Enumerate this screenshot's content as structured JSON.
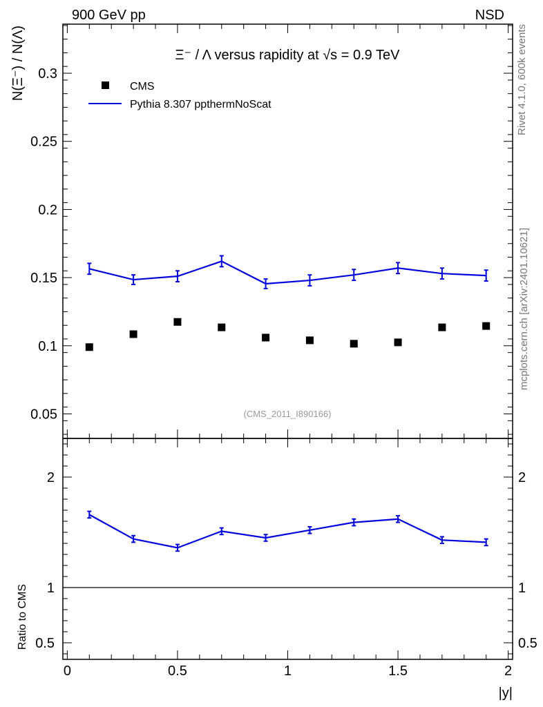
{
  "header": {
    "left_label": "900 GeV pp",
    "right_label": "NSD",
    "plot_title": "Ξ⁻ / Λ versus rapidity at √s = 0.9 TeV",
    "analysis_id": "(CMS_2011_I890166)"
  },
  "side_text": {
    "rivet": "Rivet 4.1.0,  600k events",
    "mcplots": "mcplots.cern.ch [arXiv:2401.10621]"
  },
  "chart_data": [
    {
      "type": "scatter",
      "panel": "main",
      "ylabel": "N(Ξ⁻)  /  N(Λ)",
      "xlabel": "",
      "xlim": [
        -0.02,
        2.02
      ],
      "ylim": [
        0.032,
        0.336
      ],
      "yticks": [
        0.05,
        0.1,
        0.15,
        0.2,
        0.25,
        0.3
      ],
      "ytick_labels": [
        "0.05",
        "0.1",
        "0.15",
        "0.2",
        "0.25",
        "0.3"
      ],
      "legend": {
        "position": "top-left",
        "entries": [
          "CMS",
          "Pythia 8.307 ppthermNoScat"
        ]
      },
      "series": [
        {
          "name": "CMS",
          "style": "markers",
          "color": "#000000",
          "x": [
            0.1,
            0.3,
            0.5,
            0.7,
            0.9,
            1.1,
            1.3,
            1.5,
            1.7,
            1.9
          ],
          "y": [
            0.099,
            0.1085,
            0.1175,
            0.1135,
            0.106,
            0.104,
            0.1015,
            0.1025,
            0.1135,
            0.1145
          ]
        },
        {
          "name": "Pythia 8.307 ppthermNoScat",
          "style": "line",
          "color": "#0000dd",
          "x": [
            0.1,
            0.3,
            0.5,
            0.7,
            0.9,
            1.1,
            1.3,
            1.5,
            1.7,
            1.9
          ],
          "y": [
            0.1565,
            0.1485,
            0.151,
            0.162,
            0.1455,
            0.148,
            0.152,
            0.157,
            0.153,
            0.1515
          ],
          "err": [
            0.004,
            0.0035,
            0.004,
            0.004,
            0.0035,
            0.004,
            0.004,
            0.004,
            0.004,
            0.004
          ]
        }
      ]
    },
    {
      "type": "line",
      "panel": "ratio",
      "ylabel": "Ratio to CMS",
      "xlabel": "|y|",
      "xlim": [
        -0.02,
        2.02
      ],
      "ylim": [
        0.35,
        2.35
      ],
      "xticks": [
        0,
        0.5,
        1,
        1.5,
        2
      ],
      "xtick_labels": [
        "0",
        "0.5",
        "1",
        "1.5",
        "2"
      ],
      "yticks": [
        0.5,
        1,
        2
      ],
      "ytick_labels": [
        "0.5",
        "1",
        "2"
      ],
      "reference_line": 1,
      "series": [
        {
          "name": "Pythia 8.307 ppthermNoScat / CMS",
          "color": "#0000dd",
          "x": [
            0.1,
            0.3,
            0.5,
            0.7,
            0.9,
            1.1,
            1.3,
            1.5,
            1.7,
            1.9
          ],
          "y": [
            1.66,
            1.44,
            1.36,
            1.51,
            1.45,
            1.52,
            1.59,
            1.62,
            1.43,
            1.41
          ],
          "err": [
            0.03,
            0.03,
            0.03,
            0.03,
            0.03,
            0.03,
            0.03,
            0.03,
            0.03,
            0.03
          ]
        }
      ]
    }
  ]
}
